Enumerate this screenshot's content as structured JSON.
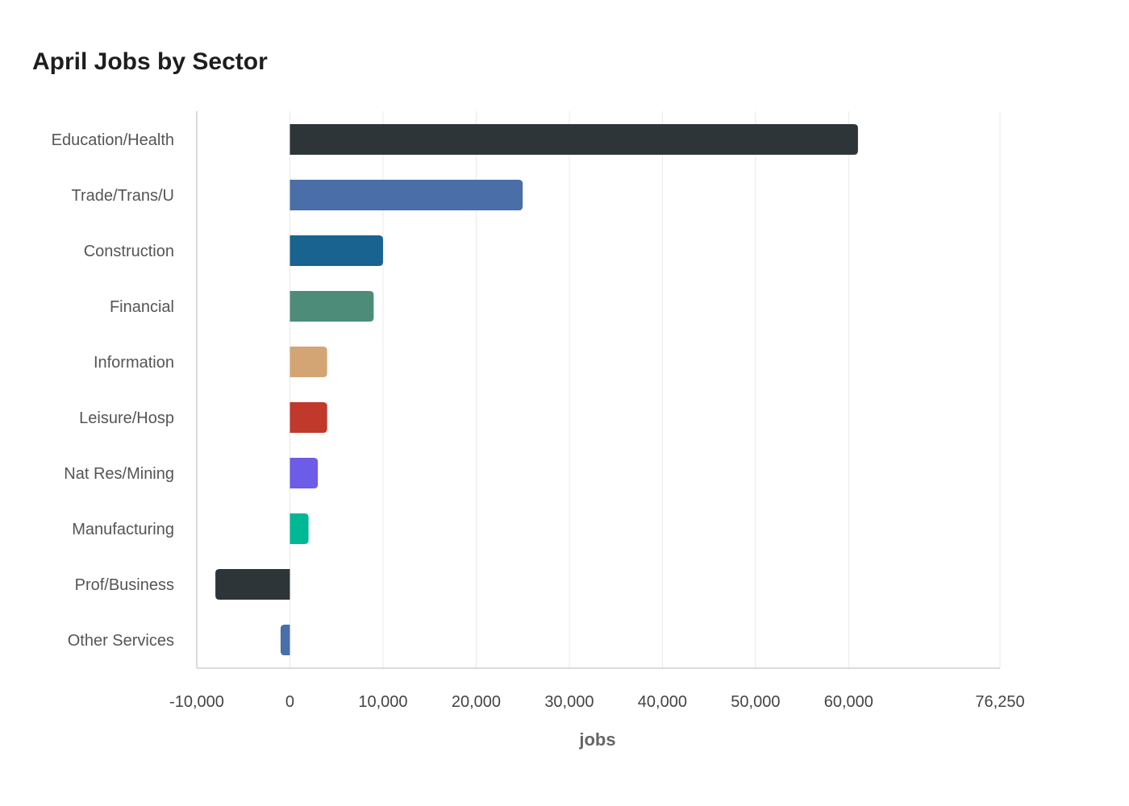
{
  "chart_data": {
    "type": "bar",
    "orientation": "horizontal",
    "title": "April Jobs by Sector",
    "xlabel": "jobs",
    "ylabel": "",
    "xlim": [
      -10000,
      76250
    ],
    "x_ticks": [
      -10000,
      0,
      10000,
      20000,
      30000,
      40000,
      50000,
      60000,
      76250
    ],
    "x_tick_labels": [
      "-10,000",
      "0",
      "10,000",
      "20,000",
      "30,000",
      "40,000",
      "50,000",
      "60,000",
      "76,250"
    ],
    "grid": true,
    "categories": [
      "Education/Health",
      "Trade/Trans/U",
      "Construction",
      "Financial",
      "Information",
      "Leisure/Hosp",
      "Nat Res/Mining",
      "Manufacturing",
      "Prof/Business",
      "Other Services"
    ],
    "values": [
      61000,
      25000,
      10000,
      9000,
      4000,
      4000,
      3000,
      2000,
      -8000,
      -1000
    ],
    "colors": [
      "#2e3538",
      "#4a6fa8",
      "#196390",
      "#4e8c7a",
      "#d4a574",
      "#c0392b",
      "#6c5ce7",
      "#00b894",
      "#2e3538",
      "#4a6fa8"
    ]
  }
}
